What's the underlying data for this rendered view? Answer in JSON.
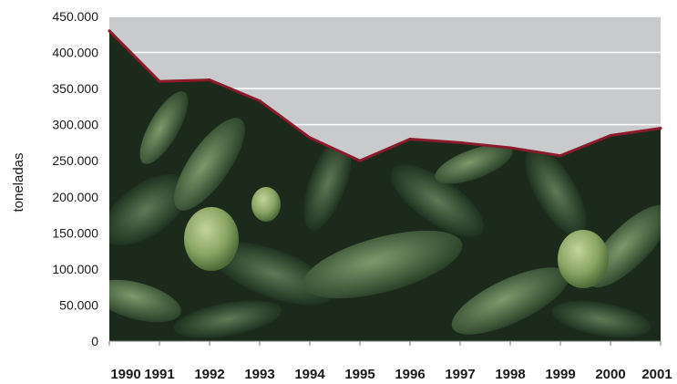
{
  "chart_data": {
    "type": "area",
    "title": "",
    "xlabel": "",
    "ylabel": "toneladas",
    "ylim": [
      0,
      450000
    ],
    "yticks": [
      "0",
      "50.000",
      "100.000",
      "150.000",
      "200.000",
      "250.000",
      "300.000",
      "350.000",
      "400.000",
      "450.000"
    ],
    "categories": [
      "1990",
      "1991",
      "1992",
      "1993",
      "1994",
      "1995",
      "1996",
      "1997",
      "1998",
      "1999",
      "2000",
      "2001"
    ],
    "series": [
      {
        "values": [
          430000,
          360000,
          362000,
          333000,
          282000,
          250000,
          280000,
          275000,
          268000,
          257000,
          285000,
          295000
        ]
      }
    ],
    "grid": true,
    "legend": "none",
    "background_image": "artichoke-field-photo",
    "colors": {
      "line": "#8b1a2b",
      "plot_background": "#c9cacc",
      "gridline": "#ffffff"
    }
  }
}
